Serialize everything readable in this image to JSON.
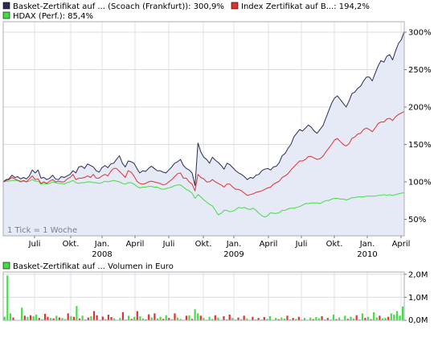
{
  "chart_data": [
    {
      "type": "line",
      "legend_position": "top",
      "grid": true,
      "x_axis": {
        "month_labels": [
          "Juli",
          "Okt.",
          "Jan.",
          "April",
          "Juli",
          "Okt.",
          "Jan.",
          "April",
          "Juli",
          "Okt.",
          "Jan.",
          "April"
        ],
        "year_labels": [
          "2008",
          "2009",
          "2010"
        ]
      },
      "y_axis": {
        "side": "right",
        "unit": "%",
        "ticks": [
          "50%",
          "100%",
          "150%",
          "200%",
          "250%",
          "300%"
        ],
        "tick_values": [
          50,
          100,
          150,
          200,
          250,
          300
        ],
        "ylim": [
          28,
          314
        ]
      },
      "note": "1 Tick = 1 Woche",
      "series": [
        {
          "name": "Basket-Zertifikat auf ... (Scoach (Frankfurt)): 300,9%",
          "color": "#2b2d4f",
          "fill": "#e6e9f6",
          "values": [
            100,
            103,
            104,
            109,
            106,
            107,
            104,
            106,
            104,
            108,
            116,
            112,
            116,
            105,
            106,
            103,
            105,
            109,
            104,
            103,
            107,
            106,
            108,
            110,
            115,
            112,
            120,
            121,
            118,
            124,
            122,
            120,
            115,
            113,
            119,
            122,
            119,
            124,
            125,
            130,
            135,
            125,
            120,
            128,
            127,
            125,
            118,
            112,
            115,
            114,
            118,
            121,
            118,
            115,
            115,
            113,
            112,
            116,
            120,
            125,
            127,
            130,
            122,
            118,
            116,
            112,
            95,
            152,
            140,
            133,
            130,
            125,
            133,
            129,
            126,
            122,
            117,
            125,
            123,
            119,
            115,
            112,
            110,
            107,
            103,
            106,
            105,
            109,
            110,
            115,
            117,
            118,
            116,
            120,
            121,
            126,
            135,
            138,
            145,
            150,
            160,
            165,
            170,
            168,
            172,
            176,
            173,
            168,
            165,
            170,
            175,
            185,
            195,
            205,
            212,
            215,
            210,
            205,
            200,
            208,
            218,
            220,
            225,
            228,
            235,
            240,
            240,
            235,
            245,
            255,
            262,
            260,
            268,
            270,
            263,
            275,
            285,
            290,
            300.9
          ]
        },
        {
          "name": "Index Zertifikat auf B...: 194,2%",
          "color": "#e03131",
          "fill": "none",
          "values": [
            100,
            102,
            103,
            106,
            104,
            102,
            100,
            102,
            100,
            104,
            108,
            103,
            104,
            98,
            100,
            98,
            101,
            103,
            100,
            101,
            100,
            100,
            104,
            106,
            110,
            103,
            105,
            105,
            106,
            108,
            106,
            110,
            105,
            105,
            108,
            110,
            108,
            114,
            118,
            118,
            114,
            110,
            106,
            115,
            113,
            108,
            101,
            98,
            97,
            98,
            100,
            101,
            100,
            99,
            98,
            96,
            97,
            100,
            103,
            107,
            111,
            112,
            105,
            105,
            100,
            97,
            88,
            110,
            106,
            104,
            100,
            100,
            103,
            100,
            98,
            96,
            93,
            97,
            97,
            93,
            90,
            90,
            88,
            85,
            82,
            83,
            84,
            86,
            87,
            88,
            90,
            92,
            93,
            97,
            99,
            101,
            106,
            108,
            111,
            116,
            120,
            124,
            128,
            128,
            130,
            134,
            134,
            132,
            130,
            131,
            134,
            140,
            145,
            150,
            156,
            158,
            154,
            150,
            148,
            151,
            158,
            160,
            164,
            165,
            170,
            172,
            170,
            167,
            172,
            178,
            180,
            180,
            184,
            185,
            182,
            187,
            190,
            192,
            194.2
          ]
        },
        {
          "name": "HDAX (Perf.): 85,4%",
          "color": "#44dd44",
          "fill": "none",
          "values": [
            100,
            101,
            101,
            102,
            102,
            102,
            101,
            101,
            100,
            101,
            103,
            101,
            101,
            97,
            98,
            97,
            98,
            100,
            99,
            98,
            98,
            97,
            99,
            100,
            102,
            99,
            98,
            99,
            99,
            100,
            100,
            99,
            99,
            98,
            99,
            101,
            100,
            101,
            102,
            101,
            100,
            98,
            97,
            99,
            99,
            97,
            94,
            92,
            93,
            93,
            94,
            94,
            93,
            93,
            91,
            90,
            91,
            92,
            93,
            95,
            96,
            96,
            93,
            90,
            88,
            85,
            78,
            83,
            80,
            76,
            73,
            70,
            68,
            62,
            56,
            58,
            62,
            62,
            60,
            61,
            63,
            66,
            65,
            66,
            64,
            63,
            65,
            62,
            58,
            55,
            53,
            55,
            59,
            58,
            58,
            59,
            62,
            62,
            64,
            65,
            65,
            66,
            67,
            69,
            71,
            71,
            72,
            72,
            72,
            71,
            73,
            75,
            75,
            77,
            78,
            78,
            77,
            77,
            76,
            77,
            79,
            79,
            80,
            80,
            80,
            81,
            81,
            81,
            81,
            82,
            82,
            83,
            82,
            83,
            82,
            83,
            84,
            85,
            85.4
          ]
        }
      ]
    },
    {
      "type": "bar",
      "title": "Basket-Zertifikat auf ... Volumen in Euro",
      "legend_color": "#44dd44",
      "y_axis": {
        "side": "right",
        "ticks": [
          "0,0M",
          "1,0M",
          "2,0M"
        ],
        "tick_values": [
          0,
          1,
          2
        ],
        "ylim": [
          0,
          2.1
        ],
        "unit": "M Euro"
      },
      "colors": {
        "up": "#44dd44",
        "down": "#e03131"
      },
      "values": [
        0.15,
        1.95,
        0.3,
        0.12,
        0,
        0,
        0.55,
        0.2,
        0.15,
        0.22,
        0.18,
        0.25,
        0.1,
        0.05,
        0.28,
        0.15,
        0.1,
        0.08,
        0.2,
        0.12,
        0.1,
        0.05,
        0.3,
        0.18,
        0.15,
        0.62,
        0.08,
        0.2,
        0.04,
        0.12,
        0.18,
        0.4,
        0.22,
        0.02,
        0.16,
        0.05,
        0.24,
        0.14,
        0.08,
        0,
        0.1,
        0.35,
        0.03,
        0.2,
        0.06,
        0.15,
        0.4,
        0.18,
        0.08,
        0.04,
        0.26,
        0.12,
        0.3,
        0.08,
        0.15,
        0.06,
        0.22,
        0.1,
        0.05,
        0.3,
        0.12,
        0.06,
        0.02,
        0.2,
        0.22,
        0.06,
        0.48,
        0.3,
        0.2,
        0.1,
        0.02,
        0.15,
        0.06,
        0.22,
        0.12,
        0.01,
        0.18,
        0.04,
        0.25,
        0.1,
        0.03,
        0.12,
        0.05,
        0.2,
        0.08,
        0.02,
        0.15,
        0.04,
        0.1,
        0.03,
        0.14,
        0.06,
        0.18,
        0.02,
        0.1,
        0.05,
        0.12,
        0.08,
        0.2,
        0.04,
        0.1,
        0.06,
        0.15,
        0.03,
        0.1,
        0.02,
        0.12,
        0.05,
        0.14,
        0.08,
        0.18,
        0.04,
        0.1,
        0.03,
        0.25,
        0.05,
        0.12,
        0.02,
        0.2,
        0.06,
        0.15,
        0.08,
        0.22,
        0.04,
        0.3,
        0.1,
        0.15,
        0.05,
        0.35,
        0.12,
        0.2,
        0.08,
        0.1,
        0.15,
        0.3,
        0.25,
        0.4,
        0.2,
        0.6
      ],
      "directions": [
        1,
        1,
        1,
        -1,
        1,
        1,
        1,
        -1,
        1,
        -1,
        1,
        1,
        -1,
        1,
        -1,
        -1,
        1,
        -1,
        1,
        -1,
        1,
        1,
        -1,
        1,
        -1,
        1,
        -1,
        1,
        1,
        -1,
        1,
        -1,
        -1,
        1,
        -1,
        1,
        -1,
        -1,
        1,
        1,
        1,
        -1,
        1,
        1,
        -1,
        1,
        -1,
        1,
        1,
        -1,
        -1,
        1,
        -1,
        1,
        1,
        -1,
        1,
        -1,
        1,
        -1,
        1,
        1,
        -1,
        -1,
        1,
        -1,
        1,
        1,
        -1,
        1,
        -1,
        1,
        1,
        -1,
        1,
        -1,
        -1,
        1,
        -1,
        1,
        1,
        -1,
        1,
        -1,
        1,
        1,
        -1,
        1,
        -1,
        1,
        -1,
        1,
        1,
        -1,
        1,
        -1,
        1,
        1,
        -1,
        1,
        -1,
        1,
        -1,
        1,
        1,
        -1,
        1,
        -1,
        1,
        1,
        -1,
        1,
        -1,
        1,
        1,
        -1,
        1,
        -1,
        1,
        -1,
        1,
        1,
        -1,
        1,
        1,
        -1,
        1,
        -1,
        1,
        1,
        -1,
        1,
        1,
        -1,
        1,
        1,
        1,
        1,
        1
      ]
    }
  ]
}
